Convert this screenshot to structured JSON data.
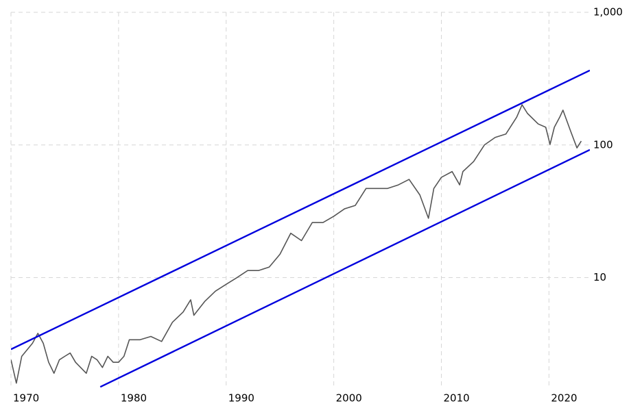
{
  "chart_data": {
    "type": "line",
    "yscale": "log",
    "grid": true,
    "xlim": [
      1970,
      2023.8
    ],
    "ylim": [
      1.45,
      1000
    ],
    "xticks": [
      1970,
      1980,
      1990,
      2000,
      2010,
      2020
    ],
    "yticks": [
      10,
      100,
      {
        "value": 1000,
        "label": "1,000"
      }
    ],
    "series": [
      {
        "color": "#555555",
        "x": [
          1970,
          1970.5,
          1971,
          1972,
          1972.5,
          1973,
          1973.5,
          1974,
          1974.5,
          1975,
          1975.5,
          1976,
          1977,
          1977.5,
          1978,
          1978.5,
          1979,
          1979.5,
          1980,
          1980.5,
          1981,
          1982,
          1983,
          1984,
          1985,
          1986,
          1986.7,
          1987,
          1988,
          1989,
          1990,
          1991,
          1992,
          1993,
          1994,
          1995,
          1996,
          1997,
          1998,
          1999,
          2000,
          2001,
          2002,
          2003,
          2004,
          2005,
          2006,
          2007,
          2008,
          2008.8,
          2009.3,
          2010,
          2011,
          2011.7,
          2012,
          2013,
          2014,
          2015,
          2016,
          2017,
          2017.5,
          2018,
          2019,
          2019.7,
          2020.1,
          2020.5,
          2021,
          2021.3,
          2022,
          2022.6,
          2023
        ],
        "values": [
          2.4,
          1.6,
          2.55,
          3.2,
          3.8,
          3.2,
          2.3,
          1.9,
          2.4,
          2.55,
          2.7,
          2.3,
          1.9,
          2.55,
          2.4,
          2.1,
          2.55,
          2.3,
          2.3,
          2.55,
          3.4,
          3.4,
          3.6,
          3.3,
          4.6,
          5.5,
          6.8,
          5.2,
          6.6,
          7.9,
          8.9,
          10,
          11.3,
          11.3,
          12,
          15,
          21.6,
          19,
          26,
          26,
          29,
          33,
          35,
          47,
          47,
          47,
          50,
          55,
          42,
          28,
          47,
          57,
          63,
          50,
          63,
          75,
          100,
          114,
          121,
          162,
          201,
          173,
          144,
          136,
          101,
          136,
          162,
          183,
          128,
          95,
          107
        ]
      },
      {
        "color": "#0000dd",
        "x": [
          1970,
          2023.8
        ],
        "values": [
          2.88,
          365
        ]
      },
      {
        "color": "#0000dd",
        "x": [
          1978.3,
          2023.8
        ],
        "values": [
          1.5,
          92
        ]
      }
    ]
  }
}
